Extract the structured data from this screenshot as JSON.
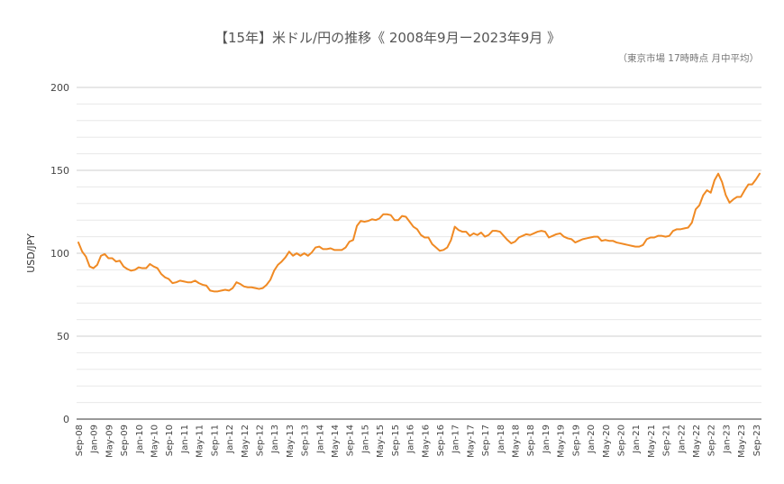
{
  "chart_data": {
    "type": "line",
    "title": "【15年】米ドル/円の推移《 2008年9月ー2023年9月 》",
    "subtitle": "（東京市場 17時時点 月中平均）",
    "xlabel": "",
    "ylabel": "USD/JPY",
    "ylim": [
      0,
      200
    ],
    "yticks": [
      0,
      50,
      100,
      150,
      200
    ],
    "grid": true,
    "legend": "none",
    "line_color": "#f08a24",
    "x_tick_labels": [
      "Sep-08",
      "Jan-09",
      "May-09",
      "Sep-09",
      "Jan-10",
      "May-10",
      "Sep-10",
      "Jan-11",
      "May-11",
      "Sep-11",
      "Jan-12",
      "May-12",
      "Sep-12",
      "Jan-13",
      "May-13",
      "Sep-13",
      "Jan-14",
      "May-14",
      "Sep-14",
      "Jan-15",
      "May-15",
      "Sep-15",
      "Jan-16",
      "May-16",
      "Sep-16",
      "Jan-17",
      "May-17",
      "Sep-17",
      "Jan-18",
      "May-18",
      "Sep-18",
      "Jan-19",
      "May-19",
      "Sep-19",
      "Jan-20",
      "May-20",
      "Sep-20",
      "Jan-21",
      "May-21",
      "Sep-21",
      "Jan-22",
      "May-22",
      "Sep-22",
      "Jan-23",
      "May-23",
      "Sep-23"
    ],
    "series": [
      {
        "start": "2008-09",
        "values": [
          106.5,
          101,
          98,
          92,
          91,
          93,
          98.5,
          99.5,
          97,
          97,
          95,
          95.5,
          92,
          90.5,
          89.5,
          90,
          91.5,
          91,
          91,
          93.5,
          92,
          91,
          87.5,
          85.5,
          84.5,
          82,
          82.5,
          83.5,
          83,
          82.5,
          82.5,
          83.5,
          82,
          81,
          80.5,
          77.5,
          77,
          77,
          77.5,
          78,
          77.5,
          79,
          82.5,
          81.5,
          80,
          79.5,
          79.5,
          79,
          78.5,
          79,
          81,
          84,
          89.5,
          93,
          95,
          97.5,
          101,
          98.5,
          100,
          98.5,
          100,
          98.5,
          100.5,
          103.5,
          104,
          102.5,
          102.5,
          103,
          102,
          102,
          102,
          103.5,
          107,
          108,
          116.5,
          119.5,
          119,
          119.5,
          120.5,
          120,
          121,
          123.5,
          123.5,
          123,
          120,
          120,
          122.5,
          122,
          119,
          116,
          114.5,
          111,
          109.5,
          109.5,
          105.5,
          103.5,
          101.5,
          102,
          103.5,
          108,
          116,
          114,
          113,
          113,
          110.5,
          112,
          111,
          112.5,
          110,
          111,
          113.5,
          113.5,
          113,
          110.5,
          108,
          106,
          107,
          109.5,
          110.5,
          111.5,
          111,
          112,
          113,
          113.5,
          113,
          109.5,
          110.5,
          111.5,
          112,
          110,
          109,
          108.5,
          106.5,
          107.5,
          108.5,
          109,
          109.5,
          110,
          110,
          107.5,
          108,
          107.5,
          107.5,
          106.5,
          106,
          105.5,
          105,
          104.5,
          104,
          104,
          105,
          108.5,
          109.5,
          109.5,
          110.5,
          110.5,
          110,
          110.5,
          113.5,
          114.5,
          114.5,
          115,
          115.5,
          118.5,
          126.5,
          129,
          135,
          138,
          136.5,
          144,
          148,
          143,
          135,
          130.5,
          132.5,
          134,
          134,
          138,
          141.5,
          141.5,
          144.5,
          148
        ]
      }
    ]
  }
}
